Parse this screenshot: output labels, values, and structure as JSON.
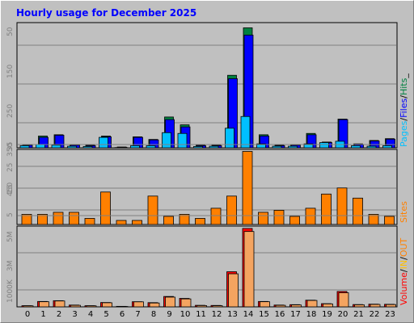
{
  "colors": {
    "page_bg": "#c0c0c0",
    "plot_bg": "#c0c0c0",
    "grid": "#808080",
    "title": "#0000ff",
    "axis_label": "#000000",
    "hits": "#008040",
    "files": "#0000ff",
    "pages": "#00c0ff",
    "sites": "#ff8000",
    "kbytes": "#ff0000",
    "in_bytes": "#ffc000",
    "out_bytes": "#ff8000"
  },
  "chart_data": [
    {
      "type": "bar",
      "panel": "hits-files-pages",
      "title": "Hourly usage for December 2025",
      "categories": [
        "0",
        "1",
        "2",
        "3",
        "4",
        "5",
        "6",
        "7",
        "8",
        "9",
        "10",
        "11",
        "12",
        "13",
        "14",
        "15",
        "16",
        "17",
        "18",
        "19",
        "20",
        "21",
        "22",
        "23"
      ],
      "ylim": [
        0,
        480
      ],
      "yticks": [
        "50",
        "150",
        "250",
        "350",
        "450"
      ],
      "legend": [
        "Pages",
        "Files",
        "Hits"
      ],
      "legend_separators": [
        "/",
        "/",
        "_"
      ],
      "series": [
        {
          "name": "Hits",
          "values": [
            12,
            45,
            50,
            12,
            10,
            45,
            3,
            42,
            32,
            118,
            88,
            10,
            10,
            278,
            460,
            50,
            10,
            12,
            55,
            22,
            110,
            15,
            28,
            35
          ]
        },
        {
          "name": "Files",
          "values": [
            10,
            40,
            48,
            10,
            8,
            42,
            2,
            40,
            30,
            108,
            80,
            8,
            8,
            265,
            432,
            45,
            8,
            10,
            50,
            20,
            108,
            12,
            26,
            33
          ]
        },
        {
          "name": "Pages",
          "values": [
            8,
            12,
            10,
            6,
            5,
            40,
            1,
            8,
            8,
            58,
            55,
            5,
            6,
            75,
            120,
            15,
            6,
            6,
            15,
            20,
            25,
            8,
            6,
            8
          ]
        }
      ]
    },
    {
      "type": "bar",
      "panel": "sites",
      "categories": [
        "0",
        "1",
        "2",
        "3",
        "4",
        "5",
        "6",
        "7",
        "8",
        "9",
        "10",
        "11",
        "12",
        "13",
        "14",
        "15",
        "16",
        "17",
        "18",
        "19",
        "20",
        "21",
        "22",
        "23"
      ],
      "ylim": [
        0,
        37
      ],
      "yticks": [
        "5",
        "15",
        "25",
        "35"
      ],
      "legend": [
        "Sites"
      ],
      "series": [
        {
          "name": "Sites",
          "values": [
            5,
            5,
            6,
            6,
            3,
            16,
            2,
            2,
            14,
            4,
            5,
            3,
            8,
            14,
            36,
            6,
            7,
            4,
            8,
            15,
            18,
            13,
            5,
            4
          ]
        }
      ]
    },
    {
      "type": "bar",
      "panel": "volume",
      "categories": [
        "0",
        "1",
        "2",
        "3",
        "4",
        "5",
        "6",
        "7",
        "8",
        "9",
        "10",
        "11",
        "12",
        "13",
        "14",
        "15",
        "16",
        "17",
        "18",
        "19",
        "20",
        "21",
        "22",
        "23"
      ],
      "ylim": [
        0,
        6300
      ],
      "yticks": [
        "1000K",
        "3M",
        "5M"
      ],
      "legend": [
        "Volume",
        "IN",
        "OUT"
      ],
      "legend_separators": [
        "/",
        "/"
      ],
      "series": [
        {
          "name": "Volume",
          "values": [
            90,
            420,
            480,
            140,
            90,
            340,
            40,
            400,
            330,
            810,
            660,
            120,
            110,
            2740,
            6120,
            420,
            140,
            170,
            520,
            250,
            1200,
            180,
            210,
            200
          ]
        },
        {
          "name": "OUT",
          "values": [
            80,
            400,
            460,
            120,
            80,
            320,
            30,
            390,
            300,
            760,
            620,
            100,
            90,
            2580,
            5880,
            400,
            120,
            150,
            500,
            230,
            1100,
            160,
            190,
            180
          ]
        }
      ]
    }
  ]
}
